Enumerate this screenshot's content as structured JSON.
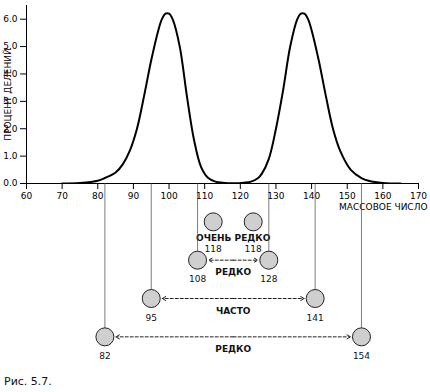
{
  "chart_data": {
    "type": "line",
    "x": [
      70,
      75,
      80,
      82,
      85,
      87,
      89,
      91,
      93,
      95,
      97,
      98,
      99,
      100,
      101,
      103,
      105,
      107,
      109,
      111,
      113,
      115,
      118,
      121,
      123,
      125,
      126,
      128,
      130,
      132,
      134,
      136,
      137,
      138,
      139,
      140,
      142,
      144,
      146,
      148,
      151,
      154,
      156,
      160,
      165
    ],
    "values": [
      0,
      0.02,
      0.1,
      0.2,
      0.4,
      0.7,
      1.2,
      2.0,
      3.2,
      4.5,
      5.6,
      6.0,
      6.2,
      6.2,
      6.0,
      5.0,
      3.2,
      1.6,
      0.6,
      0.2,
      0.07,
      0.03,
      0.01,
      0.03,
      0.07,
      0.2,
      0.35,
      0.9,
      2.0,
      3.4,
      5.0,
      6.0,
      6.2,
      6.2,
      6.0,
      5.6,
      4.5,
      3.2,
      2.0,
      1.2,
      0.5,
      0.2,
      0.1,
      0.02,
      0
    ],
    "color": "#000000",
    "xlim": [
      60,
      170
    ],
    "xticks": [
      60,
      70,
      80,
      90,
      100,
      110,
      120,
      130,
      140,
      150,
      160,
      170
    ],
    "ylim": [
      0,
      6.5
    ],
    "yticks": [
      0,
      1,
      2,
      3,
      4,
      5,
      6
    ],
    "x_label": "МАССОВОЕ ЧИСЛО",
    "y_label": "ПРОЦЕНТ ДЕЛЕНИЙ",
    "caption": "Рис. 5.7.",
    "fragment_pairs": [
      {
        "masses": [
          118,
          118
        ],
        "label": "ОЧЕНЬ РЕДКО"
      },
      {
        "masses": [
          108,
          128
        ],
        "label": "РЕДКО"
      },
      {
        "masses": [
          95,
          141
        ],
        "label": "ЧАСТО"
      },
      {
        "masses": [
          82,
          154
        ],
        "label": "РЕДКО"
      }
    ]
  }
}
